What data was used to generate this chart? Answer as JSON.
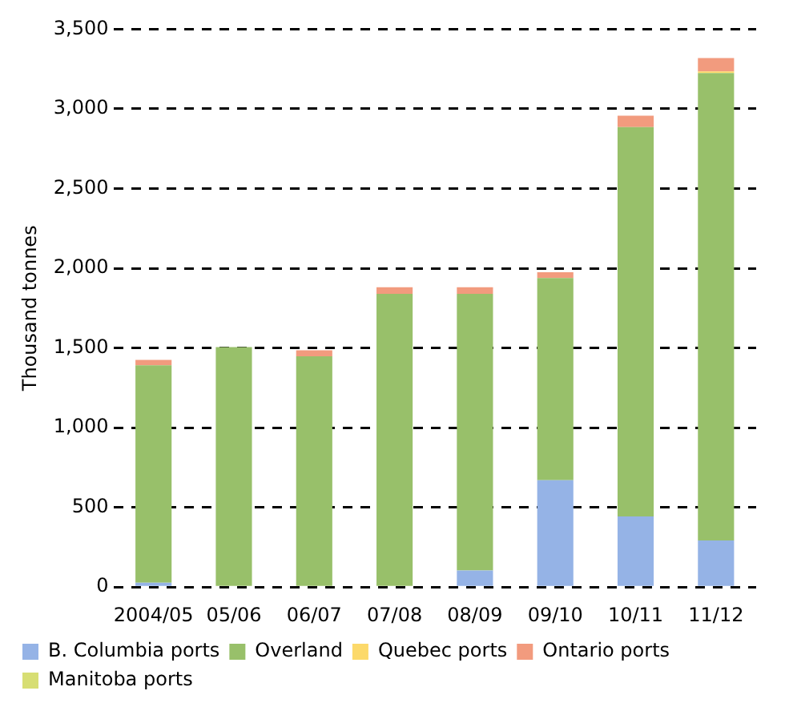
{
  "chart_data": {
    "type": "bar",
    "stacked": true,
    "ylabel": "Thousand tonnes",
    "categories": [
      "2004/05",
      "05/06",
      "06/07",
      "07/08",
      "08/09",
      "09/10",
      "10/11",
      "11/12"
    ],
    "series": [
      {
        "name": "B. Columbia ports",
        "color": "#95b3e6",
        "values": [
          27,
          7,
          7,
          0,
          104,
          670,
          443,
          292
        ]
      },
      {
        "name": "Overland",
        "color": "#98c06a",
        "values": [
          1364,
          1498,
          1441,
          1840,
          1736,
          1268,
          2443,
          2933
        ]
      },
      {
        "name": "Quebec ports",
        "color": "#fcd96a",
        "values": [
          0,
          0,
          0,
          0,
          0,
          0,
          0,
          10
        ]
      },
      {
        "name": "Ontario ports",
        "color": "#f29b7e",
        "values": [
          34,
          0,
          37,
          41,
          41,
          37,
          71,
          84
        ]
      },
      {
        "name": "Manitoba ports",
        "color": "#d7de73",
        "values": [
          0,
          0,
          0,
          0,
          0,
          0,
          0,
          0
        ]
      }
    ],
    "ylim": [
      0,
      3500
    ],
    "yticks": [
      0,
      {
        "value": 500,
        "label": "500"
      },
      {
        "value": 1000,
        "label": "1,000"
      },
      {
        "value": 1500,
        "label": "1,500"
      },
      {
        "value": 2000,
        "label": "2,000"
      },
      {
        "value": 2500,
        "label": "2,500"
      },
      {
        "value": 3000,
        "label": "3,000"
      },
      {
        "value": 3500,
        "label": "3,500"
      }
    ],
    "grid": "y",
    "legend": "bottom"
  }
}
